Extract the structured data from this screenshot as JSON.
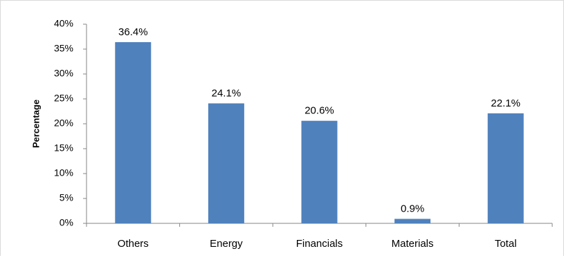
{
  "chart_data": {
    "type": "bar",
    "title": "",
    "xlabel": "",
    "ylabel": "Percentage",
    "categories": [
      "Others",
      "Energy",
      "Financials",
      "Materials",
      "Total"
    ],
    "values": [
      36.4,
      24.1,
      20.6,
      0.9,
      22.1
    ],
    "data_labels": [
      "36.4%",
      "24.1%",
      "20.6%",
      "0.9%",
      "22.1%"
    ],
    "ylim": [
      0,
      40
    ],
    "yticks": [
      0,
      5,
      10,
      15,
      20,
      25,
      30,
      35,
      40
    ],
    "ytick_labels": [
      "0%",
      "5%",
      "10%",
      "15%",
      "20%",
      "25%",
      "30%",
      "35%",
      "40%"
    ],
    "grid": false,
    "legend": "none",
    "bar_color": "#4f81bd"
  }
}
